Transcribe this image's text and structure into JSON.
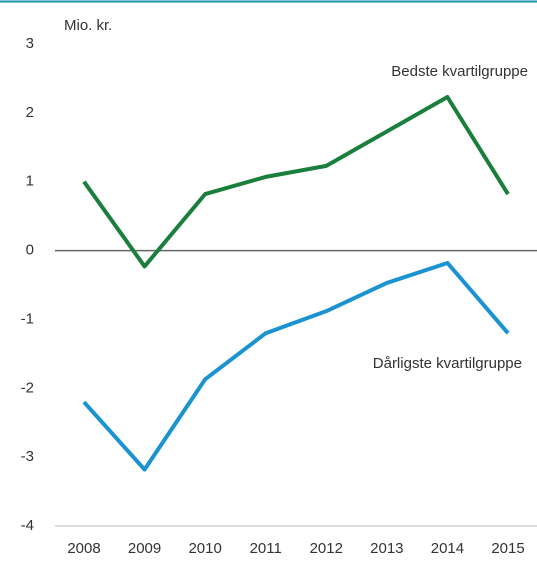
{
  "chart_data": {
    "type": "line",
    "y_label": "Mio. kr.",
    "categories": [
      "2008",
      "2009",
      "2010",
      "2011",
      "2012",
      "2013",
      "2014",
      "2015"
    ],
    "series": [
      {
        "name": "Bedste kvartilgruppe",
        "color": "#1a7f3c",
        "values": [
          1.0,
          -0.23,
          0.82,
          1.07,
          1.23,
          1.73,
          2.23,
          0.82
        ]
      },
      {
        "name": "Dårligste kvartilgruppe",
        "color": "#1a93d0",
        "values": [
          -2.2,
          -3.18,
          -1.87,
          -1.2,
          -0.88,
          -0.47,
          -0.18,
          -1.2
        ]
      }
    ],
    "ylim": [
      -4,
      3
    ],
    "yticks": [
      -4,
      -3,
      -2,
      -1,
      0,
      1,
      2,
      3
    ],
    "grid": false
  }
}
